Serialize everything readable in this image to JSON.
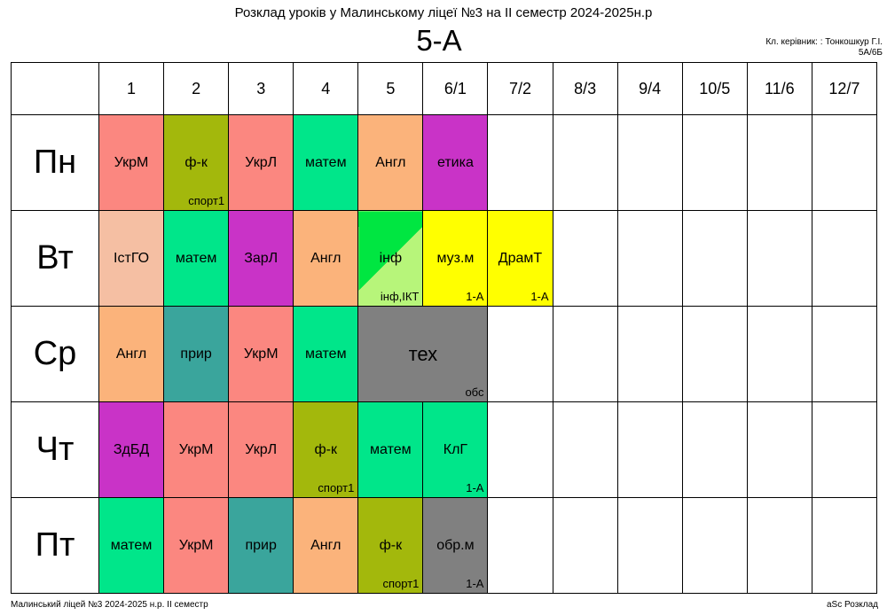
{
  "header": {
    "title": "Розклад уроків у Малинському ліцеї №3 на ІІ семестр 2024-2025н.р",
    "class_name": "5-А",
    "teacher": "Кл. керівник: : Тонкошкур Г.І.",
    "room": "5А/6Б"
  },
  "columns": [
    "1",
    "2",
    "3",
    "4",
    "5",
    "6/1",
    "7/2",
    "8/3",
    "9/4",
    "10/5",
    "11/6",
    "12/7"
  ],
  "days": [
    {
      "name": "Пн",
      "lessons": [
        {
          "subject": "УкрМ",
          "sub": "",
          "color": "#fb8780"
        },
        {
          "subject": "ф-к",
          "sub": "спорт1",
          "color": "#a3b80c"
        },
        {
          "subject": "УкрЛ",
          "sub": "",
          "color": "#fb8780"
        },
        {
          "subject": "матем",
          "sub": "",
          "color": "#00e68a"
        },
        {
          "subject": "Англ",
          "sub": "",
          "color": "#fbb37b"
        },
        {
          "subject": "етика",
          "sub": "",
          "color": "#c933c7"
        }
      ]
    },
    {
      "name": "Вт",
      "lessons": [
        {
          "subject": "ІстГО",
          "sub": "",
          "color": "#f5bfa3"
        },
        {
          "subject": "матем",
          "sub": "",
          "color": "#00e68a"
        },
        {
          "subject": "ЗарЛ",
          "sub": "",
          "color": "#c933c7"
        },
        {
          "subject": "Англ",
          "sub": "",
          "color": "#fbb37b"
        },
        {
          "subject": "інф",
          "sub": "інф,ІКТ",
          "color": "#00e641"
        },
        {
          "subject": "муз.м",
          "sub": "1-А",
          "color": "#ffff00"
        },
        {
          "subject": "ДрамТ",
          "sub": "1-А",
          "color": "#ffff00"
        }
      ]
    },
    {
      "name": "Ср",
      "lessons": [
        {
          "subject": "Англ",
          "sub": "",
          "color": "#fbb37b"
        },
        {
          "subject": "прир",
          "sub": "",
          "color": "#3aa59c"
        },
        {
          "subject": "УкрМ",
          "sub": "",
          "color": "#fb8780"
        },
        {
          "subject": "матем",
          "sub": "",
          "color": "#00e68a"
        },
        {
          "subject": "тех",
          "sub": "обс",
          "color": "#808080"
        }
      ]
    },
    {
      "name": "Чт",
      "lessons": [
        {
          "subject": "ЗдБД",
          "sub": "",
          "color": "#c933c7"
        },
        {
          "subject": "УкрМ",
          "sub": "",
          "color": "#fb8780"
        },
        {
          "subject": "УкрЛ",
          "sub": "",
          "color": "#fb8780"
        },
        {
          "subject": "ф-к",
          "sub": "спорт1",
          "color": "#a3b80c"
        },
        {
          "subject": "матем",
          "sub": "",
          "color": "#00e68a"
        },
        {
          "subject": "КлГ",
          "sub": "1-А",
          "color": "#00e68a"
        }
      ]
    },
    {
      "name": "Пт",
      "lessons": [
        {
          "subject": "матем",
          "sub": "",
          "color": "#00e68a"
        },
        {
          "subject": "УкрМ",
          "sub": "",
          "color": "#fb8780"
        },
        {
          "subject": "прир",
          "sub": "",
          "color": "#3aa59c"
        },
        {
          "subject": "Англ",
          "sub": "",
          "color": "#fbb37b"
        },
        {
          "subject": "ф-к",
          "sub": "спорт1",
          "color": "#a3b80c"
        },
        {
          "subject": "обр.м",
          "sub": "1-А",
          "color": "#808080"
        }
      ]
    }
  ],
  "footer": {
    "left": "Малинський ліцей №3  2024-2025 н.р. ІІ семестр",
    "right": "aSc Розклад"
  }
}
